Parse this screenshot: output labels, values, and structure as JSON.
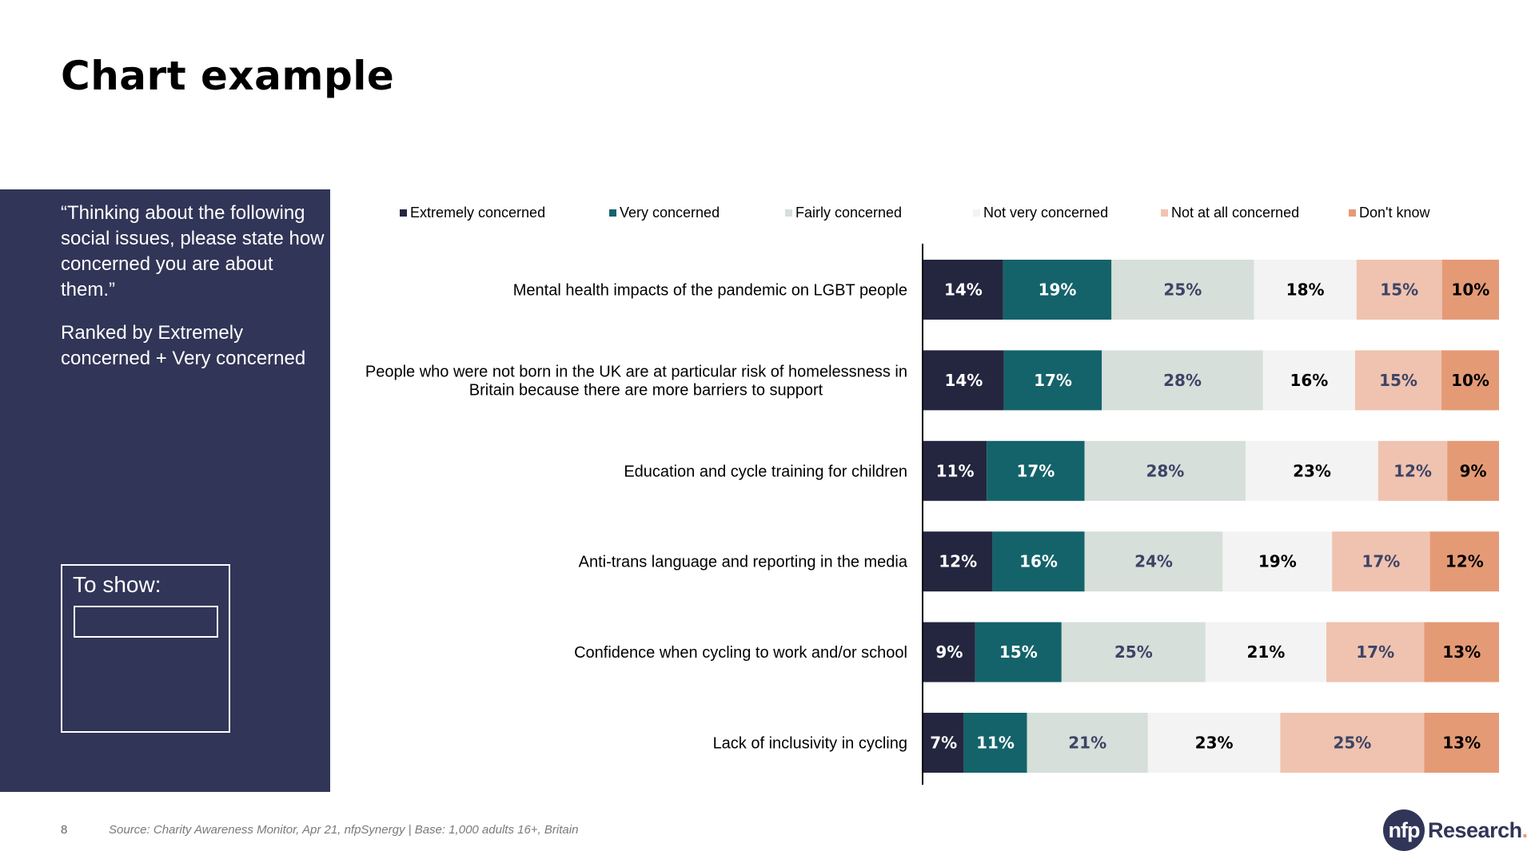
{
  "page_title": "Chart example",
  "side_panel": {
    "question": "“Thinking about the following social issues, please state how concerned you are about them.”",
    "ranking_note": "Ranked by Extremely concerned + Very concerned",
    "to_show_label": "To show:",
    "to_show_value": ""
  },
  "footer": {
    "page_number": "8",
    "source": "Source: Charity Awareness Monitor, Apr 21, nfpSynergy | Base: 1,000 adults 16+, Britain"
  },
  "logo": {
    "badge_text": "nfp",
    "word_text": "Research",
    "dot": "."
  },
  "colors": {
    "panel": "#313557",
    "extremely": "#24263f",
    "very": "#14636a",
    "fairly": "#d6dfd9",
    "not_very": "#f3f3f3",
    "not_at_all": "#efc3b0",
    "dont_know": "#e59a76"
  },
  "chart_data": {
    "type": "bar",
    "orientation": "horizontal",
    "stacked": true,
    "percent_stacked": true,
    "title": "",
    "xlabel": "",
    "ylabel": "",
    "legend_position": "top",
    "grid": false,
    "categories": [
      "Mental health impacts of the pandemic on LGBT people",
      "People who were not born in the UK are at particular risk of homelessness in Britain because there are more barriers to support",
      "Education and cycle training for children",
      "Anti-trans language and reporting in the media",
      "Confidence when cycling to work and/or school",
      "Lack of inclusivity in cycling"
    ],
    "category_label_lines": [
      [
        "Mental health impacts of the pandemic on LGBT people"
      ],
      [
        "People who were not born in the UK are at particular risk of homelessness in",
        "Britain because there are more barriers to support"
      ],
      [
        "Education and cycle training for children"
      ],
      [
        "Anti-trans language and reporting in the media"
      ],
      [
        "Confidence when cycling to work and/or school"
      ],
      [
        "Lack of inclusivity in cycling"
      ]
    ],
    "series": [
      {
        "name": "Extremely concerned",
        "color": "#24263f",
        "label_color": "#ffffff",
        "values": [
          14,
          14,
          11,
          12,
          9,
          7
        ]
      },
      {
        "name": "Very concerned",
        "color": "#14636a",
        "label_color": "#ffffff",
        "values": [
          19,
          17,
          17,
          16,
          15,
          11
        ]
      },
      {
        "name": "Fairly concerned",
        "color": "#d6dfd9",
        "label_color": "#3d4466",
        "values": [
          25,
          28,
          28,
          24,
          25,
          21
        ]
      },
      {
        "name": "Not very concerned",
        "color": "#f3f3f3",
        "label_color": "#000000",
        "values": [
          18,
          16,
          23,
          19,
          21,
          23
        ]
      },
      {
        "name": "Not at all concerned",
        "color": "#efc3b0",
        "label_color": "#3d4466",
        "values": [
          15,
          15,
          12,
          17,
          17,
          25
        ]
      },
      {
        "name": "Don't know",
        "color": "#e59a76",
        "label_color": "#000000",
        "values": [
          10,
          10,
          9,
          12,
          13,
          13
        ]
      }
    ],
    "value_suffix": "%"
  }
}
